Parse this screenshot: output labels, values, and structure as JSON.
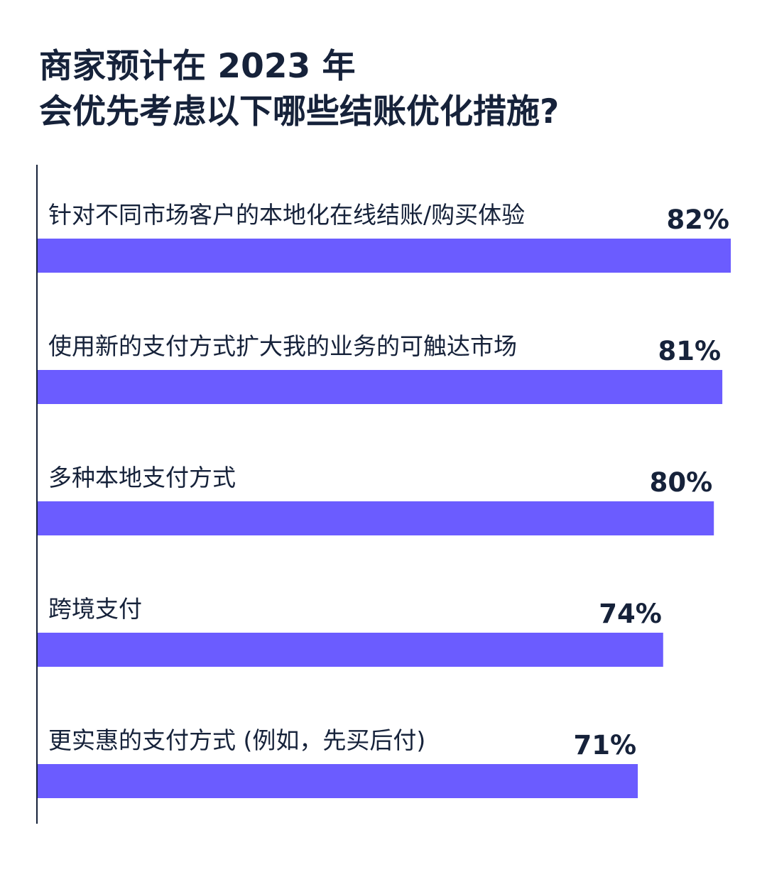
{
  "title_lines": [
    "商家预计在 2023 年",
    "会优先考虑以下哪些结账优化措施?"
  ],
  "colors": {
    "bar": "#6b5cff",
    "text": "#16223a",
    "axis": "#16223a"
  },
  "chart_data": {
    "type": "bar",
    "orientation": "horizontal",
    "title": "商家预计在 2023 年 会优先考虑以下哪些结账优化措施?",
    "categories": [
      "针对不同市场客户的本地化在线结账/购买体验",
      "使用新的支付方式扩大我的业务的可触达市场",
      "多种本地支付方式",
      "跨境支付",
      "更实惠的支付方式 (例如，先买后付)"
    ],
    "values": [
      82,
      81,
      80,
      74,
      71
    ],
    "value_labels": [
      "82%",
      "81%",
      "80%",
      "74%",
      "71%"
    ],
    "unit": "%",
    "grid": false,
    "legend": "none"
  }
}
